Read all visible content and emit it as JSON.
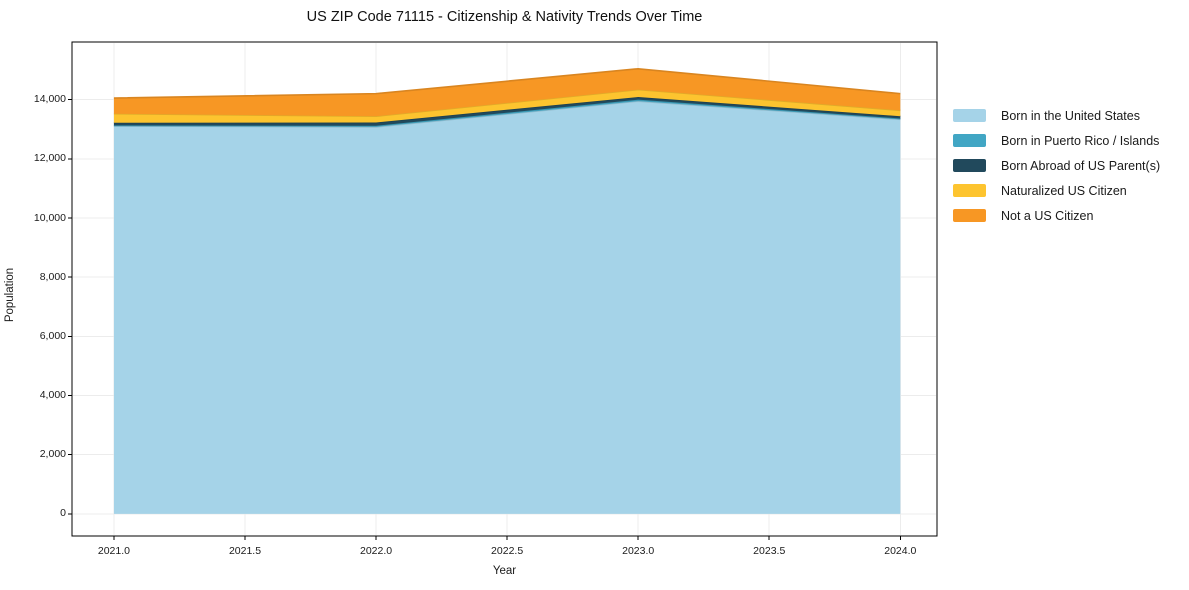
{
  "figure": {
    "title": "US ZIP Code 71115 - Citizenship & Nativity Trends Over Time",
    "background_color": "#ffffff"
  },
  "axes": {
    "xlabel": "Year",
    "ylabel": "Population",
    "x_tick_labels": [
      "2021.0",
      "2021.5",
      "2022.0",
      "2022.5",
      "2023.0",
      "2023.5",
      "2024.0"
    ],
    "y_tick_labels": [
      "0",
      "2,000",
      "4,000",
      "6,000",
      "8,000",
      "10,000",
      "12,000",
      "14,000"
    ],
    "grid": true,
    "grid_color": "#ececec",
    "spine_color": "#000000",
    "tick_color": "#000000",
    "text_color": "#1a1a1a"
  },
  "legend": {
    "position": "right"
  },
  "chart_data": {
    "type": "area",
    "stacked": true,
    "title": "US ZIP Code 71115 - Citizenship & Nativity Trends Over Time",
    "xlabel": "Year",
    "ylabel": "Population",
    "x": [
      2021,
      2022,
      2023,
      2024
    ],
    "x_ticks": [
      2021.0,
      2021.5,
      2022.0,
      2022.5,
      2023.0,
      2023.5,
      2024.0
    ],
    "y_ticks": [
      0,
      2000,
      4000,
      6000,
      8000,
      10000,
      12000,
      14000
    ],
    "xlim": [
      2020.84,
      2024.14
    ],
    "ylim": [
      -750,
      15950
    ],
    "grid": true,
    "legend_position": "right",
    "series": [
      {
        "name": "Born in the United States",
        "color": "#a5d3e8",
        "values": [
          13110,
          13080,
          13950,
          13335
        ]
      },
      {
        "name": "Born in Puerto Rico / Islands",
        "color": "#41a6c4",
        "values": [
          20,
          40,
          50,
          30
        ]
      },
      {
        "name": "Born Abroad of US Parent(s)",
        "color": "#21495c",
        "values": [
          90,
          110,
          90,
          75
        ]
      },
      {
        "name": "Naturalized US Citizen",
        "color": "#fdc42f",
        "values": [
          305,
          210,
          250,
          200
        ]
      },
      {
        "name": "Not a US Citizen",
        "color": "#f79724",
        "values": [
          530,
          765,
          705,
          565
        ]
      }
    ],
    "stacked_totals": [
      14055,
      14205,
      15045,
      14205
    ]
  }
}
